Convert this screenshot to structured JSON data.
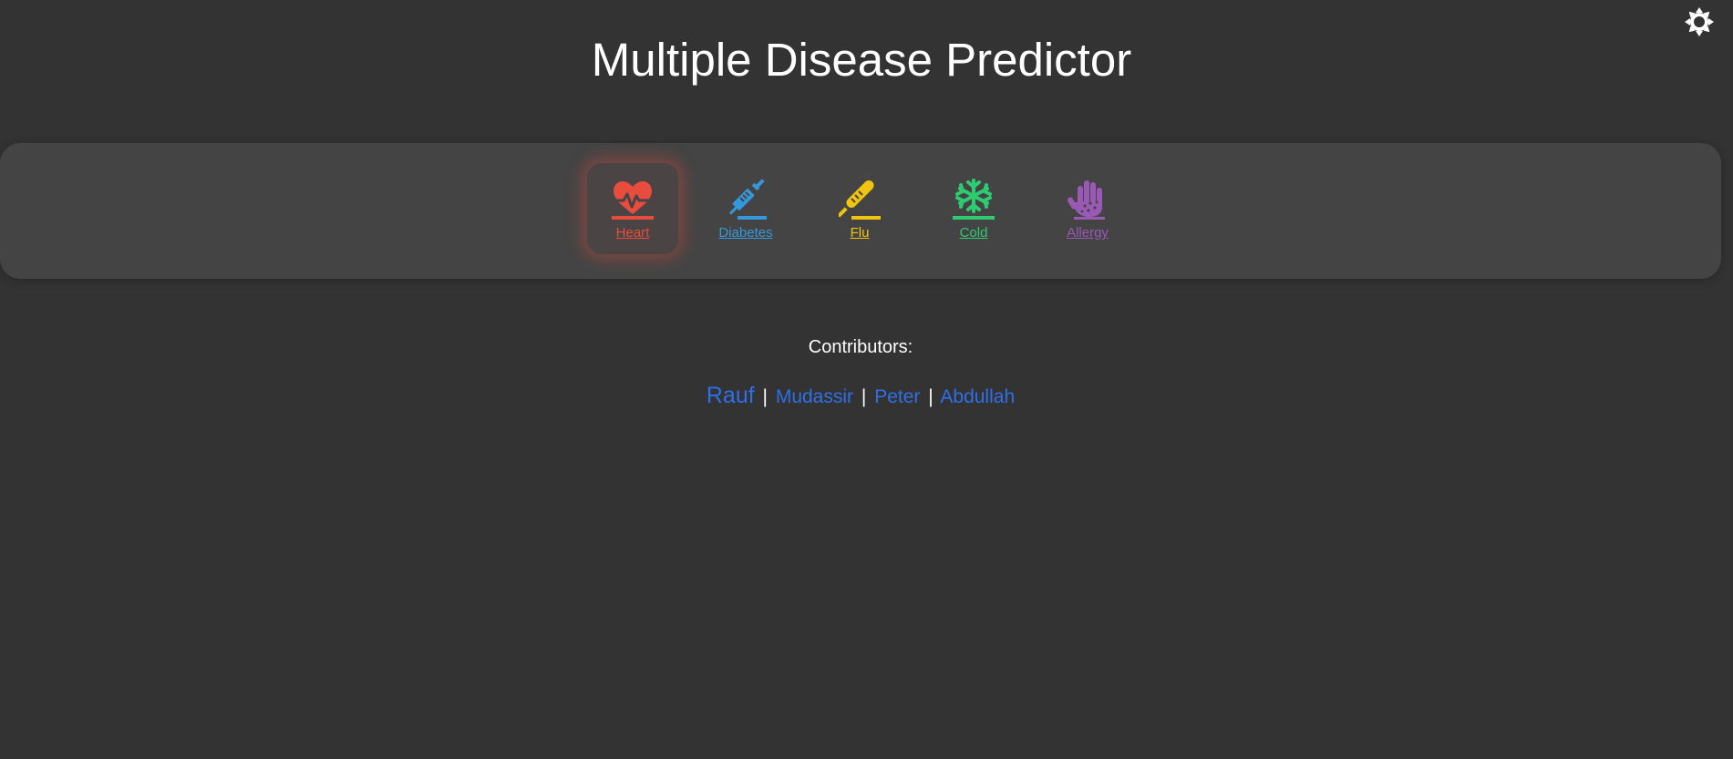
{
  "header": {
    "title": "Multiple Disease Predictor",
    "theme_toggle_icon": "sun-icon"
  },
  "nav": {
    "items": [
      {
        "label": "Heart",
        "icon": "heart-pulse-icon",
        "color": "#e74c3c",
        "active": true
      },
      {
        "label": "Diabetes",
        "icon": "syringe-icon",
        "color": "#3498db",
        "active": false
      },
      {
        "label": "Flu",
        "icon": "thermometer-icon",
        "color": "#f1c40f",
        "active": false
      },
      {
        "label": "Cold",
        "icon": "snowflake-icon",
        "color": "#2ecc71",
        "active": false
      },
      {
        "label": "Allergy",
        "icon": "hand-dots-icon",
        "color": "#9b59b6",
        "active": false
      }
    ]
  },
  "contributors": {
    "heading": "Contributors:",
    "names": [
      "Rauf",
      "Mudassir",
      "Peter",
      "Abdullah"
    ],
    "separator": "|",
    "link_color": "#2f6fe8"
  },
  "colors": {
    "background": "#333333",
    "panel": "#444444"
  }
}
